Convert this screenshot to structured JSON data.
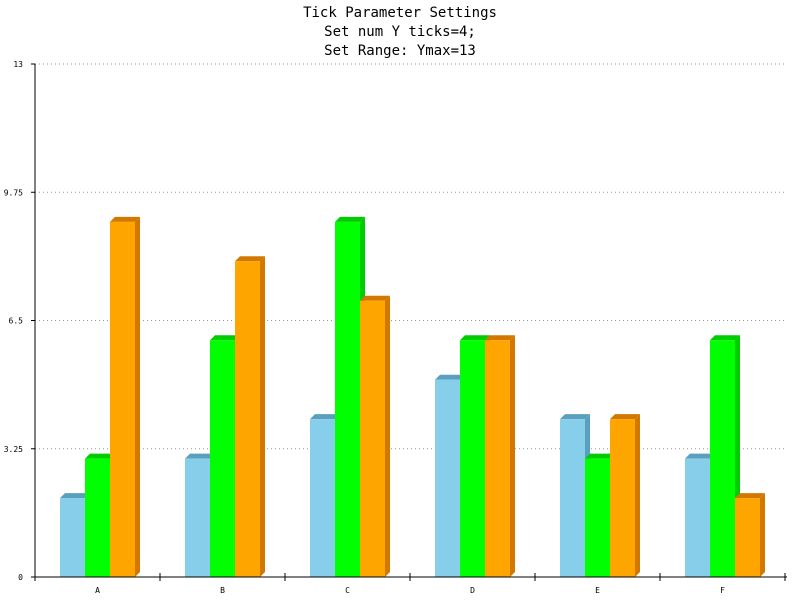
{
  "chart_data": {
    "type": "bar",
    "title": [
      "Tick Parameter Settings",
      "Set num Y ticks=4;",
      "Set Range: Ymax=13"
    ],
    "categories": [
      "A",
      "B",
      "C",
      "D",
      "E",
      "F"
    ],
    "series": [
      {
        "values": [
          2,
          3,
          4,
          5,
          4,
          3
        ]
      },
      {
        "values": [
          3,
          6,
          9,
          6,
          3,
          6
        ]
      },
      {
        "values": [
          9,
          8,
          7,
          6,
          4,
          2
        ]
      }
    ],
    "ylim": [
      0,
      13
    ],
    "yticks": [
      "0",
      "3.25",
      "6.5",
      "9.75",
      "13"
    ],
    "grid": true,
    "colors": {
      "series_front": [
        "#87ceeb",
        "#00ff00",
        "#ffa500"
      ],
      "series_side": [
        "#5aa0be",
        "#00cc00",
        "#d27800"
      ],
      "axis": "#000000",
      "grid": "#999999"
    }
  }
}
